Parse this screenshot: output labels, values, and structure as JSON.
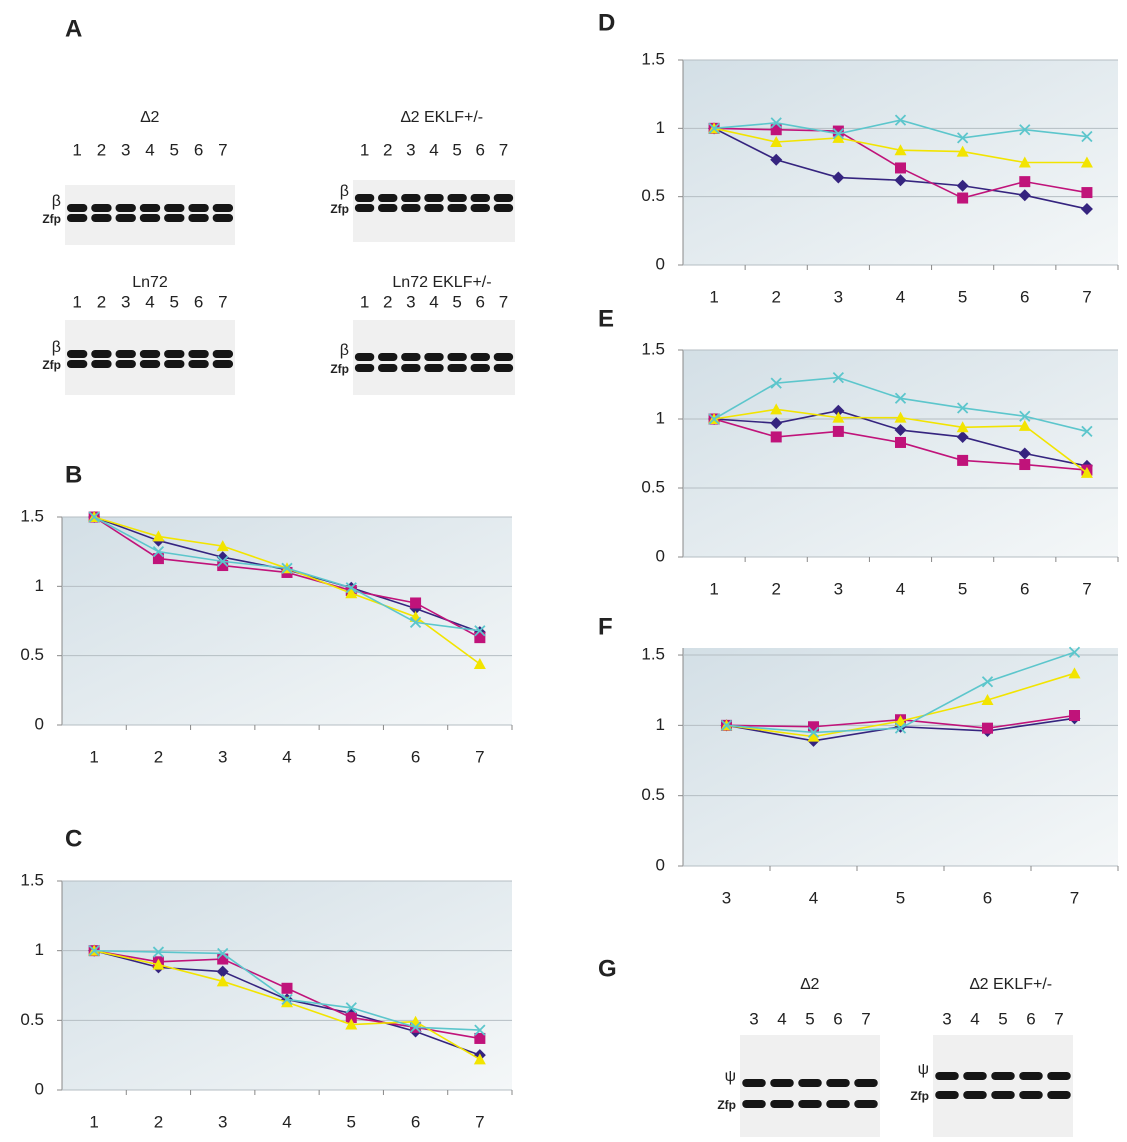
{
  "chart_data": [
    {
      "type": "line",
      "label": "B",
      "categories": [
        "1",
        "2",
        "3",
        "4",
        "5",
        "6",
        "7"
      ],
      "ylim": [
        0,
        1.5
      ],
      "yticks": [
        0,
        0.5,
        1,
        1.5
      ],
      "grid": true,
      "series": [
        {
          "color": "#35247f",
          "marker": "diamond",
          "values": [
            1.5,
            1.33,
            1.21,
            1.12,
            0.99,
            0.84,
            0.67
          ]
        },
        {
          "color": "#c0137a",
          "marker": "square",
          "values": [
            1.5,
            1.2,
            1.15,
            1.1,
            0.97,
            0.88,
            0.63
          ]
        },
        {
          "color": "#f2e400",
          "marker": "triangle",
          "values": [
            1.5,
            1.36,
            1.29,
            1.13,
            0.95,
            0.78,
            0.44
          ]
        },
        {
          "color": "#5cc6cc",
          "marker": "x",
          "values": [
            1.5,
            1.25,
            1.18,
            1.13,
            0.99,
            0.74,
            0.68
          ]
        }
      ]
    },
    {
      "type": "line",
      "label": "C",
      "categories": [
        "1",
        "2",
        "3",
        "4",
        "5",
        "6",
        "7"
      ],
      "ylim": [
        0,
        1.5
      ],
      "yticks": [
        0,
        0.5,
        1,
        1.5
      ],
      "grid": true,
      "series": [
        {
          "color": "#35247f",
          "marker": "diamond",
          "values": [
            1,
            0.88,
            0.85,
            0.65,
            0.55,
            0.42,
            0.25
          ]
        },
        {
          "color": "#c0137a",
          "marker": "square",
          "values": [
            1,
            0.92,
            0.94,
            0.73,
            0.52,
            0.45,
            0.37
          ]
        },
        {
          "color": "#f2e400",
          "marker": "triangle",
          "values": [
            1,
            0.9,
            0.78,
            0.63,
            0.47,
            0.49,
            0.22
          ]
        },
        {
          "color": "#5cc6cc",
          "marker": "x",
          "values": [
            1,
            0.99,
            0.98,
            0.65,
            0.59,
            0.45,
            0.43
          ]
        }
      ]
    },
    {
      "type": "line",
      "label": "D",
      "categories": [
        "1",
        "2",
        "3",
        "4",
        "5",
        "6",
        "7"
      ],
      "ylim": [
        0,
        1.5
      ],
      "yticks": [
        0,
        0.5,
        1,
        1.5
      ],
      "grid": true,
      "series": [
        {
          "color": "#35247f",
          "marker": "diamond",
          "values": [
            1,
            0.77,
            0.64,
            0.62,
            0.58,
            0.51,
            0.41
          ]
        },
        {
          "color": "#c0137a",
          "marker": "square",
          "values": [
            1,
            0.99,
            0.98,
            0.71,
            0.49,
            0.61,
            0.53
          ]
        },
        {
          "color": "#f2e400",
          "marker": "triangle",
          "values": [
            1,
            0.9,
            0.93,
            0.84,
            0.83,
            0.75,
            0.75
          ]
        },
        {
          "color": "#5cc6cc",
          "marker": "x",
          "values": [
            1,
            1.04,
            0.96,
            1.06,
            0.93,
            0.99,
            0.94
          ]
        }
      ]
    },
    {
      "type": "line",
      "label": "E",
      "categories": [
        "1",
        "2",
        "3",
        "4",
        "5",
        "6",
        "7"
      ],
      "ylim": [
        0,
        1.5
      ],
      "yticks": [
        0,
        0.5,
        1,
        1.5
      ],
      "grid": true,
      "series": [
        {
          "color": "#35247f",
          "marker": "diamond",
          "values": [
            1,
            0.97,
            1.06,
            0.92,
            0.87,
            0.75,
            0.66
          ]
        },
        {
          "color": "#c0137a",
          "marker": "square",
          "values": [
            1,
            0.87,
            0.91,
            0.83,
            0.7,
            0.67,
            0.63
          ]
        },
        {
          "color": "#f2e400",
          "marker": "triangle",
          "values": [
            1,
            1.07,
            1.01,
            1.01,
            0.94,
            0.95,
            0.61
          ]
        },
        {
          "color": "#5cc6cc",
          "marker": "x",
          "values": [
            1,
            1.26,
            1.3,
            1.15,
            1.08,
            1.02,
            0.91
          ]
        }
      ]
    },
    {
      "type": "line",
      "label": "F",
      "categories": [
        "3",
        "4",
        "5",
        "6",
        "7"
      ],
      "ylim": [
        0,
        1.55
      ],
      "yticks": [
        0,
        0.5,
        1,
        1.5
      ],
      "grid": true,
      "series": [
        {
          "color": "#35247f",
          "marker": "diamond",
          "values": [
            1,
            0.89,
            0.99,
            0.96,
            1.05
          ]
        },
        {
          "color": "#c0137a",
          "marker": "square",
          "values": [
            1,
            0.99,
            1.04,
            0.98,
            1.07
          ]
        },
        {
          "color": "#f2e400",
          "marker": "triangle",
          "values": [
            1,
            0.92,
            1.03,
            1.18,
            1.37
          ]
        },
        {
          "color": "#5cc6cc",
          "marker": "x",
          "values": [
            1,
            0.95,
            0.98,
            1.31,
            1.52
          ]
        }
      ]
    }
  ],
  "gel_panels": [
    {
      "label": "A",
      "gels": [
        {
          "title": "∆2",
          "lanes": [
            "1",
            "2",
            "3",
            "4",
            "5",
            "6",
            "7"
          ],
          "bands": [
            "β",
            "Zfp"
          ]
        },
        {
          "title": "∆2  EKLF+/-",
          "lanes": [
            "1",
            "2",
            "3",
            "4",
            "5",
            "6",
            "7"
          ],
          "bands": [
            "β",
            "Zfp"
          ]
        },
        {
          "title": "Ln72",
          "lanes": [
            "1",
            "2",
            "3",
            "4",
            "5",
            "6",
            "7"
          ],
          "bands": [
            "β",
            "Zfp"
          ]
        },
        {
          "title": "Ln72 EKLF+/-",
          "lanes": [
            "1",
            "2",
            "3",
            "4",
            "5",
            "6",
            "7"
          ],
          "bands": [
            "β",
            "Zfp"
          ]
        }
      ]
    },
    {
      "label": "G",
      "gels": [
        {
          "title": "∆2",
          "lanes": [
            "3",
            "4",
            "5",
            "6",
            "7"
          ],
          "bands": [
            "ψ",
            "Zfp"
          ]
        },
        {
          "title": "∆2  EKLF+/-",
          "lanes": [
            "3",
            "4",
            "5",
            "6",
            "7"
          ],
          "bands": [
            "ψ",
            "Zfp"
          ]
        }
      ]
    }
  ]
}
